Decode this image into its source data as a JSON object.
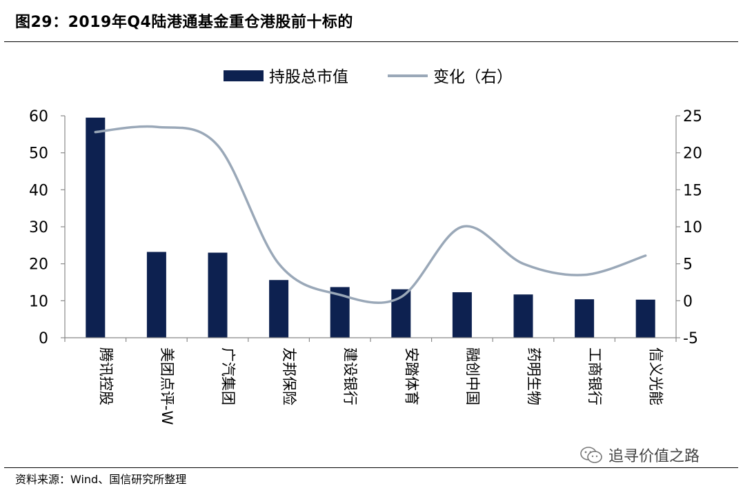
{
  "title": "图29：2019年Q4陆港通基金重仓港股前十标的",
  "source": "资料来源：Wind、国信研究所整理",
  "watermark": "追寻价值之路",
  "chart_data": {
    "type": "bar",
    "categories": [
      "腾讯控股",
      "美团点评-W",
      "广汽集团",
      "友邦保险",
      "建设银行",
      "安踏体育",
      "融创中国",
      "药明生物",
      "工商银行",
      "信义光能"
    ],
    "series": [
      {
        "name": "持股总市值",
        "type": "bar",
        "axis": "left",
        "color": "#0d2150",
        "values": [
          59.5,
          23.2,
          23.0,
          15.6,
          13.7,
          13.1,
          12.3,
          11.7,
          10.4,
          10.3
        ]
      },
      {
        "name": "变化（右）",
        "type": "line",
        "axis": "right",
        "color": "#9aa8b8",
        "values": [
          22.8,
          23.5,
          21.0,
          5.0,
          0.8,
          0.5,
          10.0,
          5.0,
          3.5,
          6.1
        ]
      }
    ],
    "y_left": {
      "min": 0,
      "max": 60,
      "ticks": [
        0,
        10,
        20,
        30,
        40,
        50,
        60
      ]
    },
    "y_right": {
      "min": -5,
      "max": 25,
      "ticks": [
        -5,
        0,
        5,
        10,
        15,
        20,
        25
      ]
    },
    "legend_position": "top-center",
    "grid": false
  }
}
